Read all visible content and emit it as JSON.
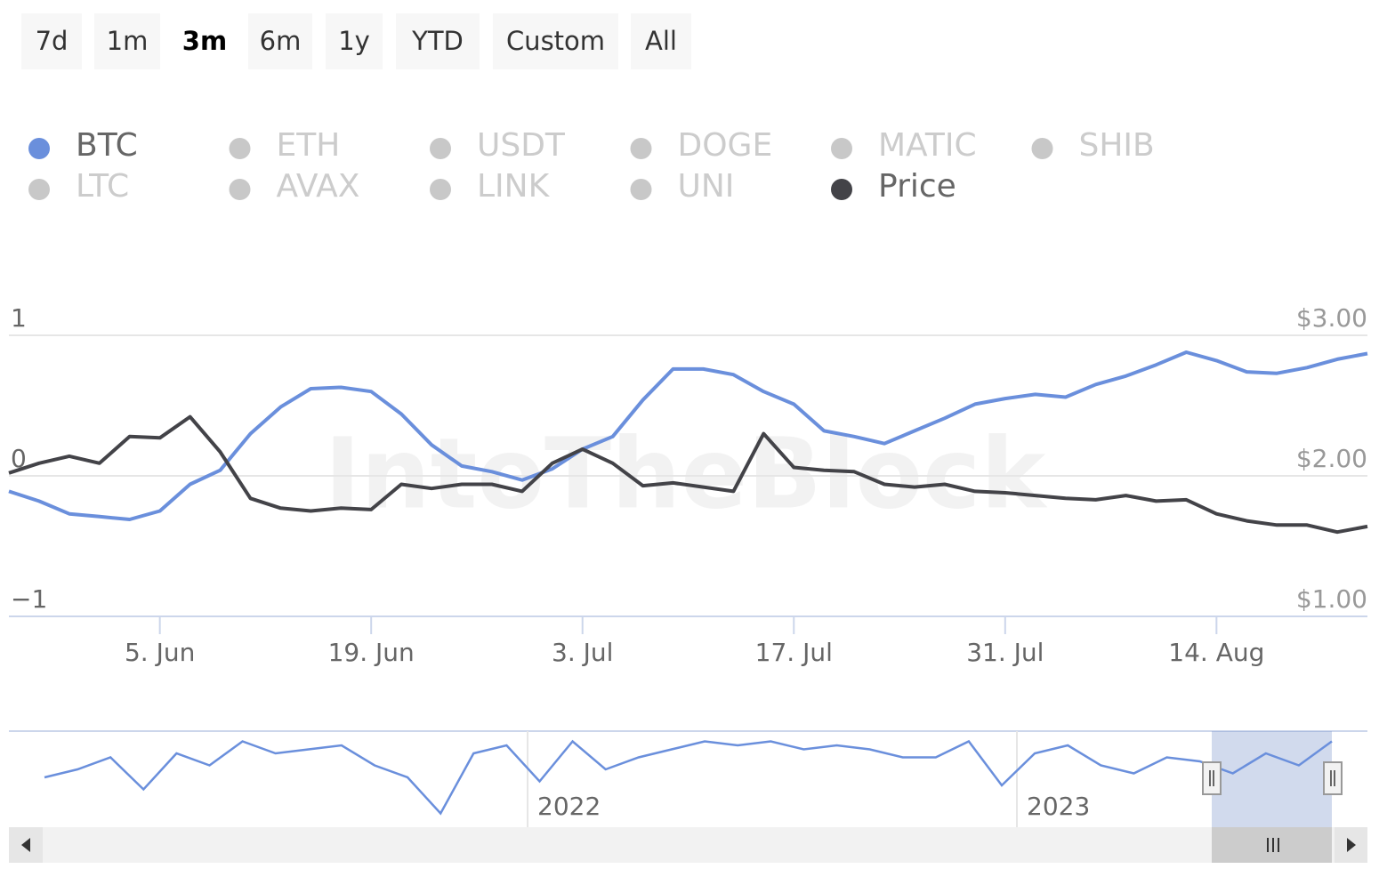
{
  "range_selector": {
    "buttons": [
      "7d",
      "1m",
      "3m",
      "6m",
      "1y",
      "YTD",
      "Custom",
      "All"
    ],
    "active": 2
  },
  "chart_data": {
    "type": "line",
    "watermark": "IntoTheBlock",
    "x": [
      "2023-05-26",
      "2023-05-28",
      "2023-05-30",
      "2023-06-01",
      "2023-06-03",
      "2023-06-05",
      "2023-06-07",
      "2023-06-09",
      "2023-06-11",
      "2023-06-13",
      "2023-06-15",
      "2023-06-17",
      "2023-06-19",
      "2023-06-21",
      "2023-06-23",
      "2023-06-25",
      "2023-06-27",
      "2023-06-29",
      "2023-07-01",
      "2023-07-03",
      "2023-07-05",
      "2023-07-07",
      "2023-07-09",
      "2023-07-11",
      "2023-07-13",
      "2023-07-15",
      "2023-07-17",
      "2023-07-19",
      "2023-07-21",
      "2023-07-23",
      "2023-07-25",
      "2023-07-27",
      "2023-07-29",
      "2023-07-31",
      "2023-08-02",
      "2023-08-04",
      "2023-08-06",
      "2023-08-08",
      "2023-08-10",
      "2023-08-12",
      "2023-08-14",
      "2023-08-16",
      "2023-08-18",
      "2023-08-20",
      "2023-08-22",
      "2023-08-24"
    ],
    "xlim": [
      "2023-05-26",
      "2023-08-24"
    ],
    "xticks": [
      {
        "value": "2023-06-05",
        "label": "5. Jun"
      },
      {
        "value": "2023-06-19",
        "label": "19. Jun"
      },
      {
        "value": "2023-07-03",
        "label": "3. Jul"
      },
      {
        "value": "2023-07-17",
        "label": "17. Jul"
      },
      {
        "value": "2023-07-31",
        "label": "31. Jul"
      },
      {
        "value": "2023-08-14",
        "label": "14. Aug"
      }
    ],
    "ylim": [
      -1,
      1
    ],
    "yticks": [
      {
        "value": -1,
        "label": "−1"
      },
      0,
      1
    ],
    "y2lim": [
      1,
      3
    ],
    "y2ticks": [
      {
        "value": 1,
        "label": "$1.00"
      },
      {
        "value": 2,
        "label": "$2.00"
      },
      {
        "value": 3,
        "label": "$3.00"
      }
    ],
    "grid": true,
    "series": [
      {
        "name": "BTC",
        "color": "#6a8fdc",
        "visible": true,
        "values": [
          -0.11,
          -0.18,
          -0.27,
          -0.29,
          -0.31,
          -0.25,
          -0.06,
          0.04,
          0.3,
          0.49,
          0.62,
          0.63,
          0.6,
          0.44,
          0.22,
          0.07,
          0.03,
          -0.03,
          0.05,
          0.19,
          0.28,
          0.54,
          0.76,
          0.76,
          0.72,
          0.6,
          0.51,
          0.32,
          0.28,
          0.23,
          0.32,
          0.41,
          0.51,
          0.55,
          0.58,
          0.56,
          0.65,
          0.71,
          0.79,
          0.88,
          0.82,
          0.74,
          0.73,
          0.77,
          0.83,
          0.87
        ]
      },
      {
        "name": "ETH",
        "color": "#c8c8c8",
        "visible": false
      },
      {
        "name": "USDT",
        "color": "#c8c8c8",
        "visible": false
      },
      {
        "name": "DOGE",
        "color": "#c8c8c8",
        "visible": false
      },
      {
        "name": "MATIC",
        "color": "#c8c8c8",
        "visible": false
      },
      {
        "name": "SHIB",
        "color": "#c8c8c8",
        "visible": false
      },
      {
        "name": "LTC",
        "color": "#c8c8c8",
        "visible": false
      },
      {
        "name": "AVAX",
        "color": "#c8c8c8",
        "visible": false
      },
      {
        "name": "LINK",
        "color": "#c8c8c8",
        "visible": false
      },
      {
        "name": "UNI",
        "color": "#c8c8c8",
        "visible": false
      },
      {
        "name": "Price",
        "color": "#434348",
        "visible": true,
        "axis": "y2",
        "values": [
          2.02,
          2.09,
          2.14,
          2.09,
          2.28,
          2.27,
          2.42,
          2.17,
          1.84,
          1.77,
          1.75,
          1.77,
          1.76,
          1.94,
          1.91,
          1.94,
          1.94,
          1.89,
          2.09,
          2.19,
          2.09,
          1.93,
          1.95,
          1.92,
          1.89,
          2.3,
          2.06,
          2.04,
          2.03,
          1.94,
          1.92,
          1.94,
          1.89,
          1.88,
          1.86,
          1.84,
          1.83,
          1.86,
          1.82,
          1.83,
          1.73,
          1.68,
          1.65,
          1.65,
          1.6,
          1.64
        ]
      }
    ],
    "navigator": {
      "values": [
        0.0,
        0.2,
        0.5,
        -0.3,
        0.6,
        0.3,
        0.9,
        0.6,
        0.7,
        0.8,
        0.3,
        0.0,
        -0.9,
        0.6,
        0.8,
        -0.1,
        0.9,
        0.2,
        0.5,
        0.7,
        0.9,
        0.8,
        0.9,
        0.7,
        0.8,
        0.7,
        0.5,
        0.5,
        0.9,
        -0.2,
        0.6,
        0.8,
        0.3,
        0.1,
        0.5,
        0.4,
        0.1,
        0.6,
        0.3,
        0.9
      ],
      "year_labels": [
        "2022",
        "2023"
      ]
    }
  }
}
